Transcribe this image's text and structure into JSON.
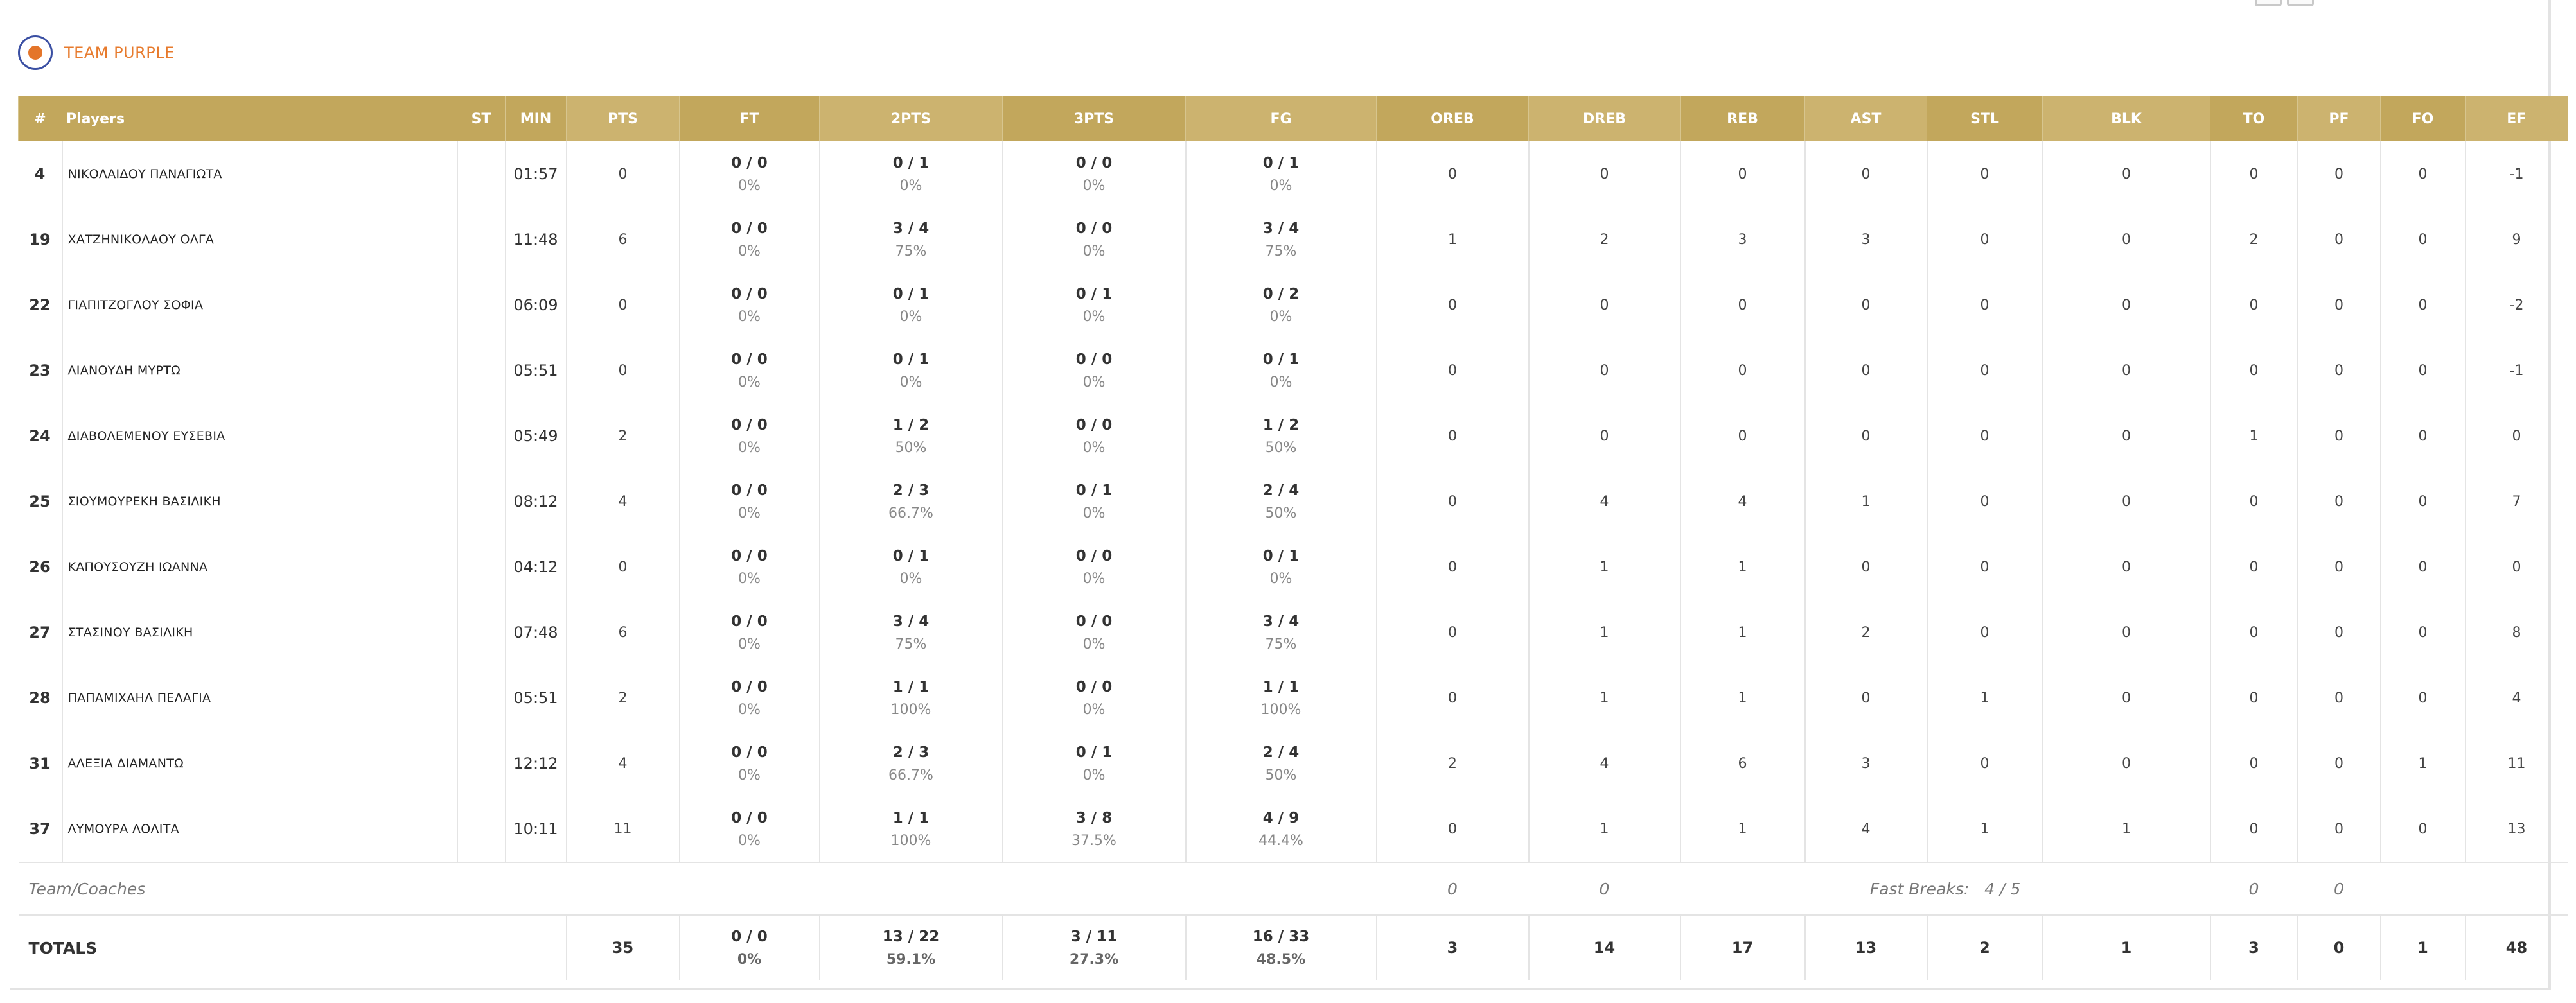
{
  "team": {
    "name": "TEAM PURPLE"
  },
  "columns": [
    "#",
    "Players",
    "ST",
    "MIN",
    "PTS",
    "FT",
    "2PTS",
    "3PTS",
    "FG",
    "OREB",
    "DREB",
    "REB",
    "AST",
    "STL",
    "BLK",
    "TO",
    "PF",
    "FO",
    "EF"
  ],
  "players": [
    {
      "num": "4",
      "name": "ΝΙΚΟΛΑΙΔΟΥ ΠΑΝΑΓΙΩΤΑ",
      "st": "",
      "min": "01:57",
      "pts": "0",
      "ft": {
        "a": "0 / 0",
        "p": "0%"
      },
      "p2": {
        "a": "0 / 1",
        "p": "0%"
      },
      "p3": {
        "a": "0 / 0",
        "p": "0%"
      },
      "fg": {
        "a": "0 / 1",
        "p": "0%"
      },
      "oreb": "0",
      "dreb": "0",
      "reb": "0",
      "ast": "0",
      "stl": "0",
      "blk": "0",
      "to": "0",
      "pf": "0",
      "fo": "0",
      "ef": "-1"
    },
    {
      "num": "19",
      "name": "ΧΑΤΖΗΝΙΚΟΛΑΟΥ ΟΛΓΑ",
      "st": "",
      "min": "11:48",
      "pts": "6",
      "ft": {
        "a": "0 / 0",
        "p": "0%"
      },
      "p2": {
        "a": "3 / 4",
        "p": "75%"
      },
      "p3": {
        "a": "0 / 0",
        "p": "0%"
      },
      "fg": {
        "a": "3 / 4",
        "p": "75%"
      },
      "oreb": "1",
      "dreb": "2",
      "reb": "3",
      "ast": "3",
      "stl": "0",
      "blk": "0",
      "to": "2",
      "pf": "0",
      "fo": "0",
      "ef": "9"
    },
    {
      "num": "22",
      "name": "ΓΙΑΠΙΤΖΟΓΛΟΥ ΣΟΦΙΑ",
      "st": "",
      "min": "06:09",
      "pts": "0",
      "ft": {
        "a": "0 / 0",
        "p": "0%"
      },
      "p2": {
        "a": "0 / 1",
        "p": "0%"
      },
      "p3": {
        "a": "0 / 1",
        "p": "0%"
      },
      "fg": {
        "a": "0 / 2",
        "p": "0%"
      },
      "oreb": "0",
      "dreb": "0",
      "reb": "0",
      "ast": "0",
      "stl": "0",
      "blk": "0",
      "to": "0",
      "pf": "0",
      "fo": "0",
      "ef": "-2"
    },
    {
      "num": "23",
      "name": "ΛΙΑΝΟΥΔΗ ΜΥΡΤΩ",
      "st": "",
      "min": "05:51",
      "pts": "0",
      "ft": {
        "a": "0 / 0",
        "p": "0%"
      },
      "p2": {
        "a": "0 / 1",
        "p": "0%"
      },
      "p3": {
        "a": "0 / 0",
        "p": "0%"
      },
      "fg": {
        "a": "0 / 1",
        "p": "0%"
      },
      "oreb": "0",
      "dreb": "0",
      "reb": "0",
      "ast": "0",
      "stl": "0",
      "blk": "0",
      "to": "0",
      "pf": "0",
      "fo": "0",
      "ef": "-1"
    },
    {
      "num": "24",
      "name": "ΔΙΑΒΟΛΕΜΕΝΟΥ ΕΥΣΕΒΙΑ",
      "st": "",
      "min": "05:49",
      "pts": "2",
      "ft": {
        "a": "0 / 0",
        "p": "0%"
      },
      "p2": {
        "a": "1 / 2",
        "p": "50%"
      },
      "p3": {
        "a": "0 / 0",
        "p": "0%"
      },
      "fg": {
        "a": "1 / 2",
        "p": "50%"
      },
      "oreb": "0",
      "dreb": "0",
      "reb": "0",
      "ast": "0",
      "stl": "0",
      "blk": "0",
      "to": "1",
      "pf": "0",
      "fo": "0",
      "ef": "0"
    },
    {
      "num": "25",
      "name": "ΣΙΟΥΜΟΥΡΕΚΗ ΒΑΣΙΛΙΚΗ",
      "st": "",
      "min": "08:12",
      "pts": "4",
      "ft": {
        "a": "0 / 0",
        "p": "0%"
      },
      "p2": {
        "a": "2 / 3",
        "p": "66.7%"
      },
      "p3": {
        "a": "0 / 1",
        "p": "0%"
      },
      "fg": {
        "a": "2 / 4",
        "p": "50%"
      },
      "oreb": "0",
      "dreb": "4",
      "reb": "4",
      "ast": "1",
      "stl": "0",
      "blk": "0",
      "to": "0",
      "pf": "0",
      "fo": "0",
      "ef": "7"
    },
    {
      "num": "26",
      "name": "ΚΑΠΟΥΣΟΥΖΗ ΙΩΑΝΝΑ",
      "st": "",
      "min": "04:12",
      "pts": "0",
      "ft": {
        "a": "0 / 0",
        "p": "0%"
      },
      "p2": {
        "a": "0 / 1",
        "p": "0%"
      },
      "p3": {
        "a": "0 / 0",
        "p": "0%"
      },
      "fg": {
        "a": "0 / 1",
        "p": "0%"
      },
      "oreb": "0",
      "dreb": "1",
      "reb": "1",
      "ast": "0",
      "stl": "0",
      "blk": "0",
      "to": "0",
      "pf": "0",
      "fo": "0",
      "ef": "0"
    },
    {
      "num": "27",
      "name": "ΣΤΑΣΙΝΟΥ ΒΑΣΙΛΙΚΗ",
      "st": "",
      "min": "07:48",
      "pts": "6",
      "ft": {
        "a": "0 / 0",
        "p": "0%"
      },
      "p2": {
        "a": "3 / 4",
        "p": "75%"
      },
      "p3": {
        "a": "0 / 0",
        "p": "0%"
      },
      "fg": {
        "a": "3 / 4",
        "p": "75%"
      },
      "oreb": "0",
      "dreb": "1",
      "reb": "1",
      "ast": "2",
      "stl": "0",
      "blk": "0",
      "to": "0",
      "pf": "0",
      "fo": "0",
      "ef": "8"
    },
    {
      "num": "28",
      "name": "ΠΑΠΑΜΙΧΑΗΛ ΠΕΛΑΓΙΑ",
      "st": "",
      "min": "05:51",
      "pts": "2",
      "ft": {
        "a": "0 / 0",
        "p": "0%"
      },
      "p2": {
        "a": "1 / 1",
        "p": "100%"
      },
      "p3": {
        "a": "0 / 0",
        "p": "0%"
      },
      "fg": {
        "a": "1 / 1",
        "p": "100%"
      },
      "oreb": "0",
      "dreb": "1",
      "reb": "1",
      "ast": "0",
      "stl": "1",
      "blk": "0",
      "to": "0",
      "pf": "0",
      "fo": "0",
      "ef": "4"
    },
    {
      "num": "31",
      "name": "ΑΛΕΞΙΑ ΔΙΑΜΑΝΤΩ",
      "st": "",
      "min": "12:12",
      "pts": "4",
      "ft": {
        "a": "0 / 0",
        "p": "0%"
      },
      "p2": {
        "a": "2 / 3",
        "p": "66.7%"
      },
      "p3": {
        "a": "0 / 1",
        "p": "0%"
      },
      "fg": {
        "a": "2 / 4",
        "p": "50%"
      },
      "oreb": "2",
      "dreb": "4",
      "reb": "6",
      "ast": "3",
      "stl": "0",
      "blk": "0",
      "to": "0",
      "pf": "0",
      "fo": "1",
      "ef": "11"
    },
    {
      "num": "37",
      "name": "ΛΥΜΟΥΡΑ ΛΟΛΙΤΑ",
      "st": "",
      "min": "10:11",
      "pts": "11",
      "ft": {
        "a": "0 / 0",
        "p": "0%"
      },
      "p2": {
        "a": "1 / 1",
        "p": "100%"
      },
      "p3": {
        "a": "3 / 8",
        "p": "37.5%"
      },
      "fg": {
        "a": "4 / 9",
        "p": "44.4%"
      },
      "oreb": "0",
      "dreb": "1",
      "reb": "1",
      "ast": "4",
      "stl": "1",
      "blk": "1",
      "to": "0",
      "pf": "0",
      "fo": "0",
      "ef": "13"
    }
  ],
  "team_coaches": {
    "label": "Team/Coaches",
    "oreb": "0",
    "dreb": "0",
    "fast_breaks_label": "Fast Breaks:",
    "fast_breaks_value": "4 / 5",
    "to": "0",
    "pf": "0"
  },
  "totals": {
    "label": "TOTALS",
    "pts": "35",
    "ft": {
      "a": "0 / 0",
      "p": "0%"
    },
    "p2": {
      "a": "13 / 22",
      "p": "59.1%"
    },
    "p3": {
      "a": "3 / 11",
      "p": "27.3%"
    },
    "fg": {
      "a": "16 / 33",
      "p": "48.5%"
    },
    "oreb": "3",
    "dreb": "14",
    "reb": "17",
    "ast": "13",
    "stl": "2",
    "blk": "1",
    "to": "3",
    "pf": "0",
    "fo": "1",
    "ef": "48"
  },
  "colors": {
    "header_bg": "#c2a75c",
    "header_text": "#ffffff",
    "team_name": "#e77a2c"
  }
}
